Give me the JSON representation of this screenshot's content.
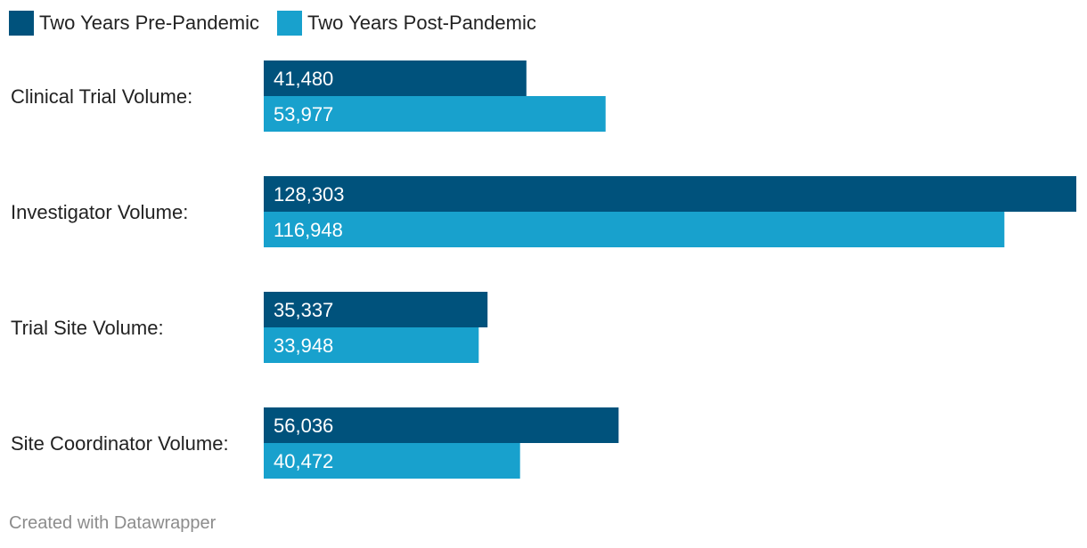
{
  "chart_data": {
    "type": "bar",
    "orientation": "horizontal",
    "categories": [
      "Clinical Trial Volume:",
      "Investigator Volume:",
      "Trial Site Volume:",
      "Site Coordinator Volume:"
    ],
    "series": [
      {
        "name": "Two Years Pre-Pandemic",
        "color": "#00527c",
        "values": [
          41480,
          128303,
          35337,
          56036
        ],
        "labels": [
          "41,480",
          "128,303",
          "35,337",
          "56,036"
        ]
      },
      {
        "name": "Two Years Post-Pandemic",
        "color": "#18a1cd",
        "values": [
          53977,
          116948,
          33948,
          40472
        ],
        "labels": [
          "53,977",
          "116,948",
          "33,948",
          "40,472"
        ]
      }
    ],
    "xlim": [
      0,
      128303
    ],
    "legend_position": "top-left",
    "grid": false,
    "title": "",
    "xlabel": "",
    "ylabel": ""
  },
  "footer": {
    "credit": "Created with Datawrapper"
  }
}
